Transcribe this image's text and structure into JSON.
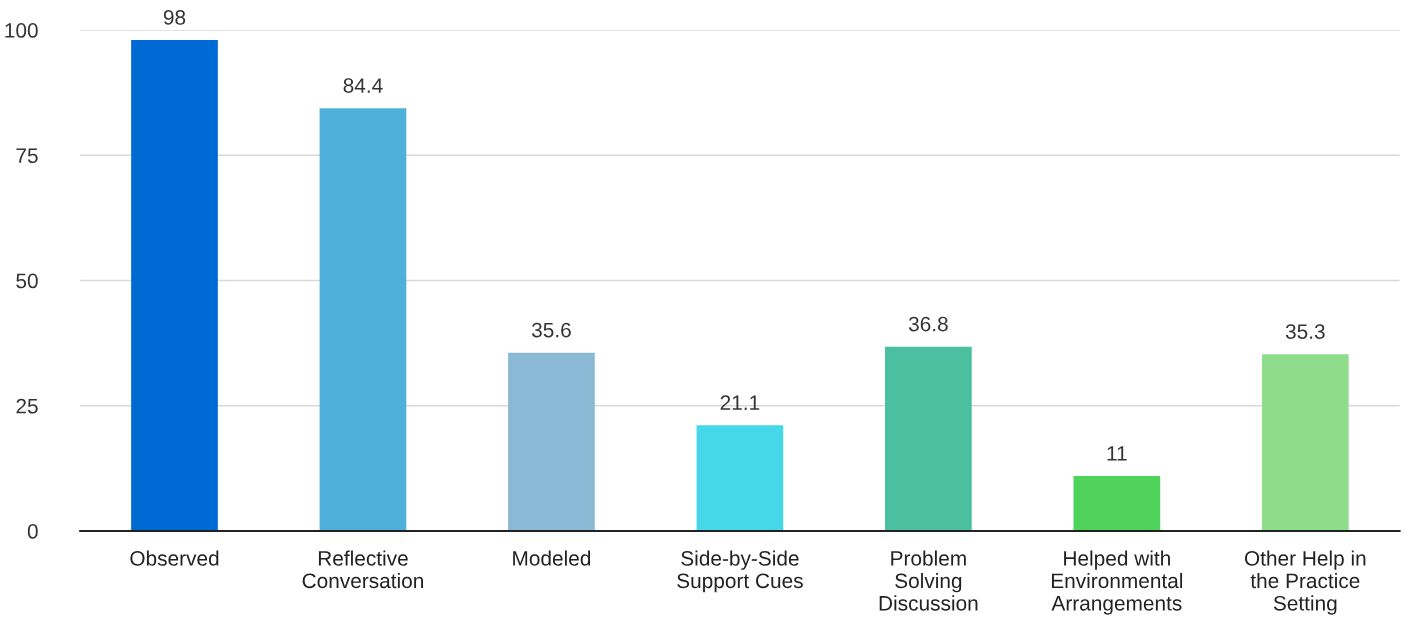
{
  "chart_data": {
    "type": "bar",
    "categories": [
      "Observed",
      "Reflective\nConversation",
      "Modeled",
      "Side-by-Side\nSupport Cues",
      "Problem\nSolving\nDiscussion",
      "Helped with\nEnvironmental\nArrangements",
      "Other Help in\nthe Practice\nSetting"
    ],
    "values": [
      98,
      84.4,
      35.6,
      21.1,
      36.8,
      11,
      35.3
    ],
    "colors": [
      "#006ad4",
      "#4fb0db",
      "#8ab9d6",
      "#46d8e8",
      "#4bc0a0",
      "#4fd35a",
      "#8ddd8c"
    ],
    "ylim": [
      0,
      100
    ],
    "yticks": [
      0,
      25,
      50,
      75,
      100
    ],
    "grid": "y",
    "data_labels": true
  }
}
